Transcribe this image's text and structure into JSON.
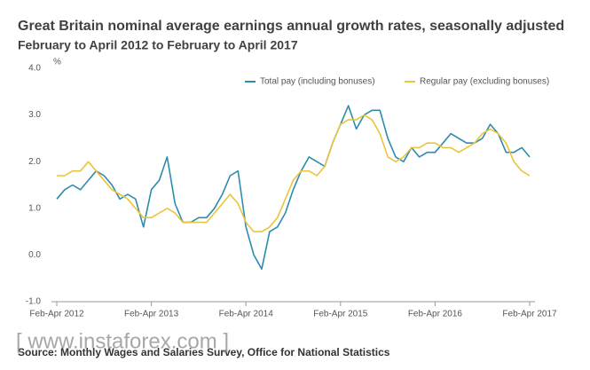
{
  "chart_data": {
    "type": "line",
    "title": "Great Britain nominal average earnings annual growth rates, seasonally adjusted",
    "subtitle": "February to April 2012 to February to April 2017",
    "y_label": "%",
    "source": "Source: Monthly Wages and Salaries Survey, Office for National Statistics",
    "watermark": "[ www.instaforex.com ]",
    "categories": [
      "Feb-Apr 2012",
      null,
      null,
      null,
      null,
      null,
      null,
      null,
      null,
      null,
      null,
      null,
      "Feb-Apr 2013",
      null,
      null,
      null,
      null,
      null,
      null,
      null,
      null,
      null,
      null,
      null,
      "Feb-Apr 2014",
      null,
      null,
      null,
      null,
      null,
      null,
      null,
      null,
      null,
      null,
      null,
      "Feb-Apr 2015",
      null,
      null,
      null,
      null,
      null,
      null,
      null,
      null,
      null,
      null,
      null,
      "Feb-Apr 2016",
      null,
      null,
      null,
      null,
      null,
      null,
      null,
      null,
      null,
      null,
      null,
      "Feb-Apr 2017"
    ],
    "series": [
      {
        "name": "Total pay (including bonuses)",
        "color": "#2e8bae",
        "values": [
          1.2,
          1.4,
          1.5,
          1.4,
          1.6,
          1.8,
          1.7,
          1.5,
          1.2,
          1.3,
          1.2,
          0.6,
          1.4,
          1.6,
          2.1,
          1.1,
          0.7,
          0.7,
          0.8,
          0.8,
          1.0,
          1.3,
          1.7,
          1.8,
          0.6,
          0.0,
          -0.3,
          0.5,
          0.6,
          0.9,
          1.4,
          1.8,
          2.1,
          2.0,
          1.9,
          2.4,
          2.8,
          3.2,
          2.7,
          3.0,
          3.1,
          3.1,
          2.5,
          2.1,
          2.0,
          2.3,
          2.1,
          2.2,
          2.2,
          2.4,
          2.6,
          2.5,
          2.4,
          2.4,
          2.5,
          2.8,
          2.6,
          2.2,
          2.2,
          2.3,
          2.1
        ]
      },
      {
        "name": "Regular pay (excluding bonuses)",
        "color": "#e9c53a",
        "values": [
          1.7,
          1.7,
          1.8,
          1.8,
          2.0,
          1.8,
          1.6,
          1.4,
          1.3,
          1.2,
          1.0,
          0.8,
          0.8,
          0.9,
          1.0,
          0.9,
          0.7,
          0.7,
          0.7,
          0.7,
          0.9,
          1.1,
          1.3,
          1.1,
          0.7,
          0.5,
          0.5,
          0.6,
          0.8,
          1.2,
          1.6,
          1.8,
          1.8,
          1.7,
          1.9,
          2.4,
          2.8,
          2.9,
          2.9,
          3.0,
          2.9,
          2.6,
          2.1,
          2.0,
          2.1,
          2.3,
          2.3,
          2.4,
          2.4,
          2.3,
          2.3,
          2.2,
          2.3,
          2.4,
          2.6,
          2.7,
          2.6,
          2.4,
          2.0,
          1.8,
          1.7
        ]
      }
    ],
    "ylim": [
      -1,
      4
    ],
    "yticks": [
      {
        "value": 4,
        "label": "4.0"
      },
      {
        "value": 3,
        "label": "3.0"
      },
      {
        "value": 2,
        "label": "2.0"
      },
      {
        "value": 1,
        "label": "1.0"
      },
      {
        "value": 0,
        "label": "0.0"
      },
      {
        "value": -1,
        "label": "-1.0"
      }
    ],
    "grid": false,
    "legend": "top-right"
  }
}
